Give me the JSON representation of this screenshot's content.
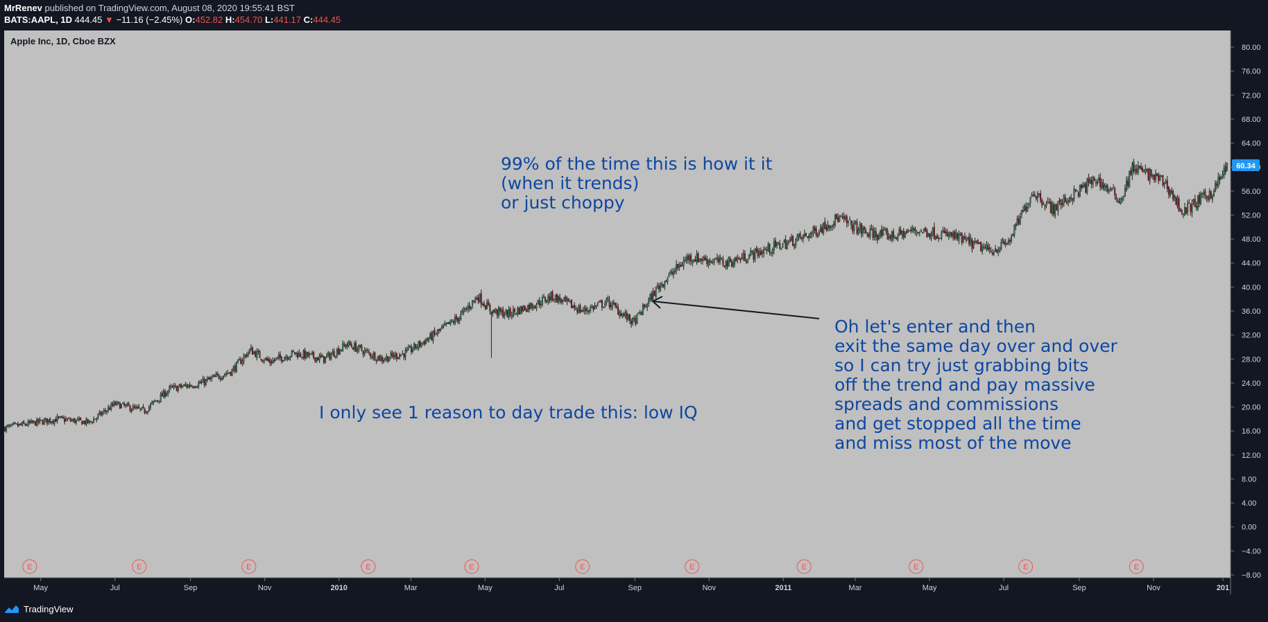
{
  "header": {
    "author": "MrRenev",
    "published": "published on TradingView.com, August 08, 2020 19:55:41 BST",
    "symbol": "BATS:AAPL, 1D",
    "last": "444.45",
    "change_arrow": "▼",
    "change": "−11.16 (−2.45%)",
    "o_label": "O:",
    "o": "452.82",
    "h_label": "H:",
    "h": "454.70",
    "l_label": "L:",
    "l": "441.17",
    "c_label": "C:",
    "c": "444.45"
  },
  "chart_data": {
    "type": "candlestick",
    "title": "Apple Inc, 1D, Cboe BZX",
    "y_ticks": [
      "80.00",
      "76.00",
      "72.00",
      "68.00",
      "64.00",
      "60.00",
      "56.00",
      "52.00",
      "48.00",
      "44.00",
      "40.00",
      "36.00",
      "32.00",
      "28.00",
      "24.00",
      "20.00",
      "16.00",
      "12.00",
      "8.00",
      "4.00",
      "0.00",
      "−4.00",
      "−8.00"
    ],
    "ylim": [
      -8,
      82
    ],
    "x_ticks": [
      "May",
      "Jul",
      "Sep",
      "Nov",
      "2010",
      "Mar",
      "May",
      "Jul",
      "Sep",
      "Nov",
      "2011",
      "Mar",
      "May",
      "Jul",
      "Sep",
      "Nov",
      "201"
    ],
    "x_tick_bold": [
      "2010",
      "2011",
      "201"
    ],
    "x_range": [
      "2009-04-01",
      "2012-01-01"
    ],
    "price_path": [
      [
        "2009-04-01",
        16.5
      ],
      [
        "2009-05-15",
        18.0
      ],
      [
        "2009-06-10",
        17.4
      ],
      [
        "2009-07-01",
        20.5
      ],
      [
        "2009-07-25",
        19.3
      ],
      [
        "2009-08-15",
        23.0
      ],
      [
        "2009-09-10",
        24.0
      ],
      [
        "2009-10-05",
        26.0
      ],
      [
        "2009-10-20",
        29.5
      ],
      [
        "2009-11-05",
        27.5
      ],
      [
        "2009-11-25",
        29.0
      ],
      [
        "2009-12-20",
        28.0
      ],
      [
        "2010-01-08",
        30.5
      ],
      [
        "2010-02-05",
        28.0
      ],
      [
        "2010-02-25",
        29.0
      ],
      [
        "2010-03-20",
        32.0
      ],
      [
        "2010-04-10",
        35.0
      ],
      [
        "2010-04-25",
        38.5
      ],
      [
        "2010-05-06",
        36.0
      ],
      [
        "2010-05-20",
        35.5
      ],
      [
        "2010-06-15",
        37.5
      ],
      [
        "2010-06-25",
        38.5
      ],
      [
        "2010-07-20",
        36.0
      ],
      [
        "2010-08-10",
        37.5
      ],
      [
        "2010-08-31",
        34.0
      ],
      [
        "2010-09-20",
        40.0
      ],
      [
        "2010-10-15",
        45.0
      ],
      [
        "2010-11-01",
        44.5
      ],
      [
        "2010-11-15",
        44.0
      ],
      [
        "2010-12-15",
        46.0
      ],
      [
        "2011-01-20",
        48.5
      ],
      [
        "2011-02-15",
        51.5
      ],
      [
        "2011-03-10",
        49.0
      ],
      [
        "2011-04-01",
        48.5
      ],
      [
        "2011-04-20",
        49.5
      ],
      [
        "2011-05-20",
        48.5
      ],
      [
        "2011-06-20",
        46.0
      ],
      [
        "2011-07-05",
        47.5
      ],
      [
        "2011-07-25",
        56.0
      ],
      [
        "2011-08-10",
        53.0
      ],
      [
        "2011-09-15",
        58.0
      ],
      [
        "2011-10-05",
        54.5
      ],
      [
        "2011-10-15",
        60.0
      ],
      [
        "2011-11-10",
        57.5
      ],
      [
        "2011-11-25",
        52.5
      ],
      [
        "2011-12-20",
        56.0
      ],
      [
        "2012-01-01",
        60.34
      ]
    ],
    "spike_low": {
      "date": "2010-05-06",
      "low": 28.2
    },
    "last_price_label": "60.34",
    "earnings_markers": [
      "2009-04-22",
      "2009-07-21",
      "2009-10-19",
      "2010-01-25",
      "2010-04-20",
      "2010-07-20",
      "2010-10-18",
      "2011-01-18",
      "2011-04-20",
      "2011-07-19",
      "2011-10-18"
    ],
    "earnings_label": "E",
    "colors": {
      "background": "#c0c0c0",
      "candle": "#1f1f1f",
      "down_candle": "#8b1a1a",
      "up_candle": "#2e7d5b",
      "earnings": "#ef5350",
      "price_badge": "#2196f3"
    },
    "annotations": {
      "top": "99% of the time this is how it it\n(when it trends)\nor just choppy",
      "middle": "I only see 1 reason to day trade this: low IQ",
      "right": "Oh let's enter and then\nexit the same day over and over\nso I can try just grabbing bits\noff the trend and pay massive\nspreads and commissions\nand get stopped all the time\nand miss most of the move"
    }
  },
  "footer": {
    "brand": "TradingView"
  }
}
